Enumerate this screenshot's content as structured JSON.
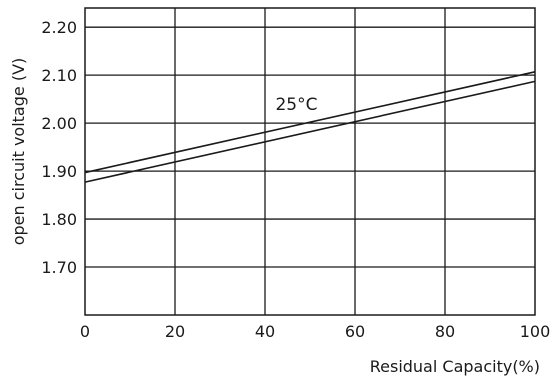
{
  "chart_data": {
    "type": "line",
    "title": "",
    "xlabel": "Residual Capacity(%)",
    "ylabel": "open circuit voltage (V)",
    "xlim": [
      0,
      100
    ],
    "ylim": [
      1.6,
      2.24
    ],
    "x_ticks": [
      0,
      20,
      40,
      60,
      80,
      100
    ],
    "x_tick_labels": [
      "0",
      "20",
      "40",
      "60",
      "80",
      "100"
    ],
    "y_ticks": [
      1.7,
      1.8,
      1.9,
      2.0,
      2.1,
      2.2
    ],
    "y_tick_labels": [
      "1.70",
      "1.80",
      "1.90",
      "2.00",
      "2.10",
      "2.20"
    ],
    "grid": true,
    "series": [
      {
        "x": [
          0,
          100
        ],
        "y": [
          1.897,
          2.107
        ]
      },
      {
        "x": [
          0,
          100
        ],
        "y": [
          1.877,
          2.087
        ]
      }
    ],
    "annotations": [
      {
        "text": "25°C",
        "x": 47,
        "y": 2.04
      }
    ],
    "colors": {
      "line": "#1a1a1a",
      "grid": "#1a1a1a"
    }
  }
}
